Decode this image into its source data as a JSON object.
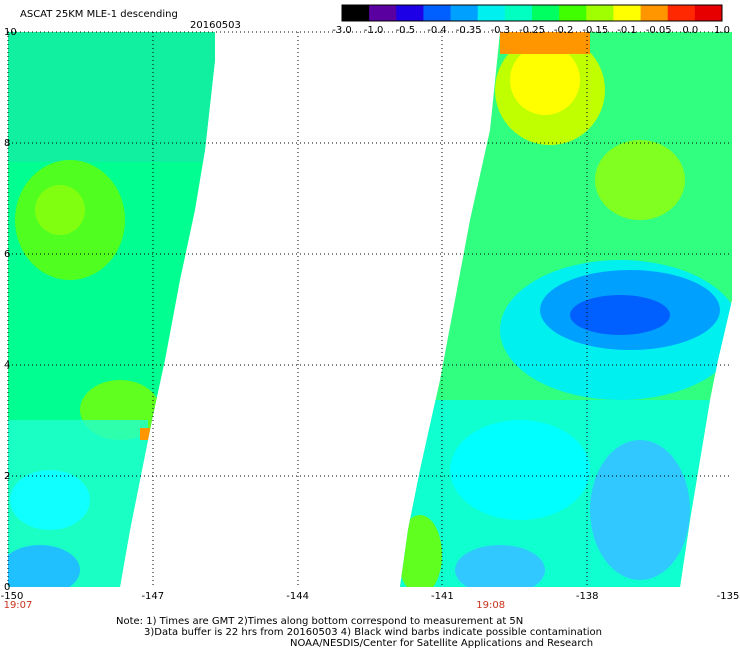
{
  "title": "ASCAT 25KM MLE-1 descending",
  "date": "20160503",
  "colorbar": {
    "labels": [
      "-3.0",
      "-1.0",
      "-0.5",
      "-0.4",
      "-0.35",
      "-0.3",
      "-0.25",
      "-0.2",
      "-0.15",
      "-0.1",
      "-0.05",
      "0.0",
      "1.0"
    ],
    "colors": [
      "#000000",
      "#5a00a0",
      "#1e00e6",
      "#0060ff",
      "#00a0ff",
      "#00f0f0",
      "#00ffc0",
      "#00ff60",
      "#40ff00",
      "#a0ff00",
      "#ffff00",
      "#ff9600",
      "#ff2800",
      "#e60000"
    ]
  },
  "axes": {
    "x_ticks": [
      "-150",
      "-147",
      "-144",
      "-141",
      "-138",
      "-135"
    ],
    "y_ticks": [
      "0",
      "2",
      "4",
      "6",
      "8",
      "10"
    ],
    "xlim": [
      -150,
      -135
    ],
    "ylim": [
      0,
      10
    ],
    "grid": "dotted"
  },
  "times": [
    {
      "label": "19:07",
      "lon": -150
    },
    {
      "label": "19:08",
      "lon": -140
    }
  ],
  "notes": [
    "Note: 1) Times are GMT 2)Times along bottom correspond to measurement at 5N",
    "3)Data buffer is 22 hrs from 20160503 4) Black wind barbs indicate possible contamination",
    "NOAA/NESDIS/Center for Satellite Applications and Research"
  ]
}
